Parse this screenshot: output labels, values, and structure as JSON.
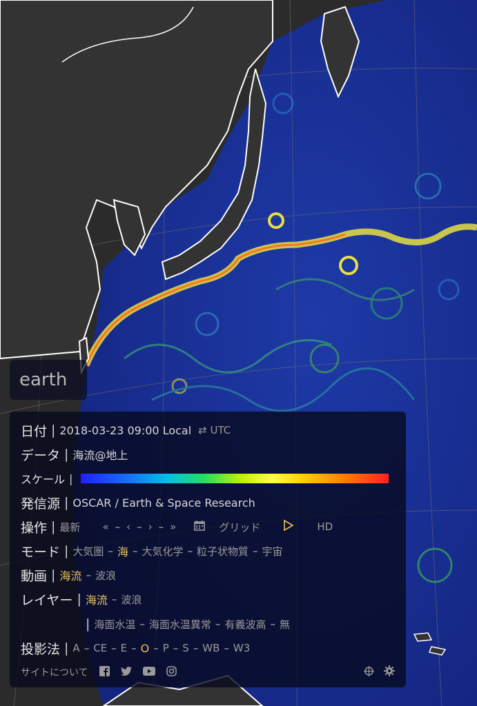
{
  "app": {
    "button": "earth"
  },
  "panel": {
    "date": {
      "label": "日付",
      "value": "2018-03-23 09:00 Local",
      "toggle": "⇄ UTC"
    },
    "data": {
      "label": "データ",
      "value": "海流@地上"
    },
    "scale": {
      "label": "スケール"
    },
    "source": {
      "label": "発信源",
      "value": "OSCAR / Earth & Space Research"
    },
    "control": {
      "label": "操作",
      "latest": "最新",
      "nav": [
        "«",
        "‹",
        "›",
        "»"
      ],
      "grid": "グリッド",
      "hd": "HD"
    },
    "mode": {
      "label": "モード",
      "items": [
        "大気圏",
        "海",
        "大気化学",
        "粒子状物質",
        "宇宙"
      ],
      "active": "海"
    },
    "animation": {
      "label": "動画",
      "items": [
        "海流",
        "波浪"
      ],
      "active": "海流"
    },
    "layer": {
      "label": "レイヤー",
      "items": [
        "海流",
        "波浪"
      ],
      "active": "海流",
      "items2": [
        "海面水温",
        "海面水温異常",
        "有義波高",
        "無"
      ]
    },
    "projection": {
      "label": "投影法",
      "items": [
        "A",
        "CE",
        "E",
        "O",
        "P",
        "S",
        "WB",
        "W3"
      ],
      "active": "O"
    },
    "footer": {
      "about": "サイトについて"
    }
  },
  "colors": {
    "panel_bg": "#0a0c22",
    "active": "#e9c15b",
    "ocean": "#1a2a8a",
    "land": "#333333"
  }
}
